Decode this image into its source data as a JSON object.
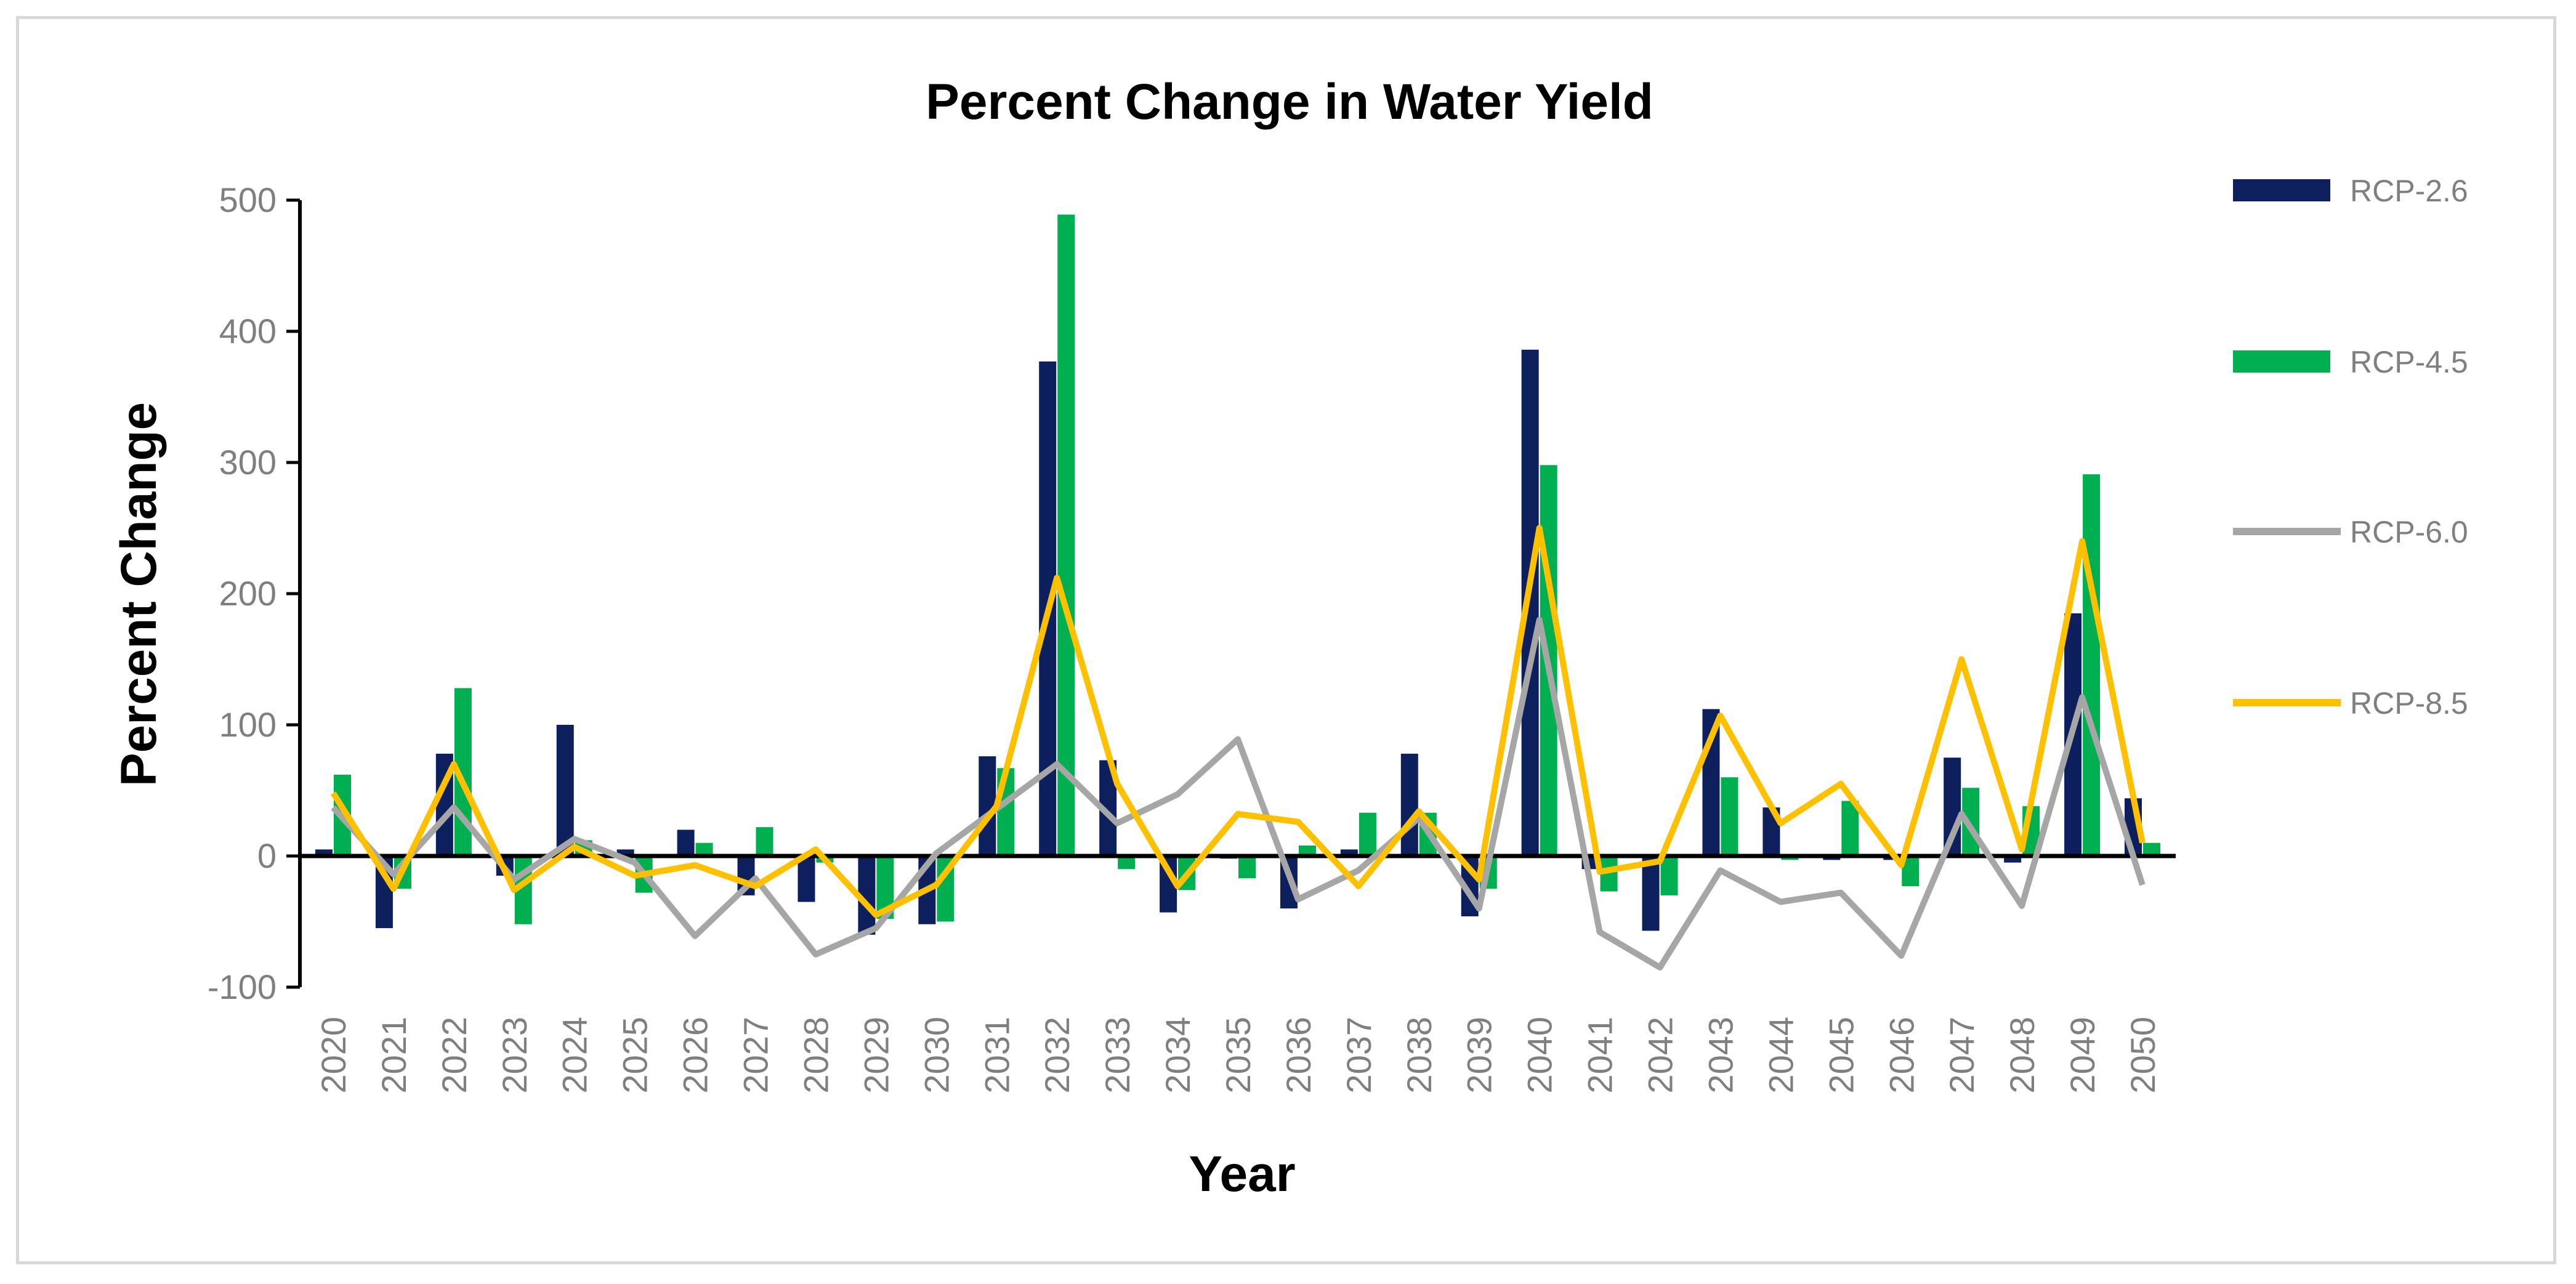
{
  "chart_data": {
    "type": "bar",
    "title": "Percent Change in Water Yield",
    "xlabel": "Year",
    "ylabel": "Percent Change",
    "ylim": [
      -100,
      500
    ],
    "yticks": [
      -100,
      0,
      100,
      200,
      300,
      400,
      500
    ],
    "grid": false,
    "legend_position": "right",
    "categories": [
      "2020",
      "2021",
      "2022",
      "2023",
      "2024",
      "2025",
      "2026",
      "2027",
      "2028",
      "2029",
      "2030",
      "2031",
      "2032",
      "2033",
      "2034",
      "2035",
      "2036",
      "2037",
      "2038",
      "2039",
      "2040",
      "2041",
      "2042",
      "2043",
      "2044",
      "2045",
      "2046",
      "2047",
      "2048",
      "2049",
      "2050"
    ],
    "series": [
      {
        "name": "RCP-2.6",
        "kind": "bar",
        "color": "#0d1f5c",
        "values": [
          5,
          -55,
          78,
          -15,
          100,
          5,
          20,
          -30,
          -35,
          -60,
          -52,
          76,
          377,
          73,
          -43,
          -2,
          -40,
          5,
          78,
          -46,
          386,
          -10,
          -57,
          112,
          37,
          -3,
          -3,
          75,
          -5,
          185,
          44
        ]
      },
      {
        "name": "RCP-4.5",
        "kind": "bar",
        "color": "#00b050",
        "values": [
          62,
          -25,
          128,
          -52,
          12,
          -28,
          10,
          22,
          -5,
          -48,
          -50,
          67,
          489,
          -10,
          -26,
          -17,
          8,
          33,
          33,
          -25,
          298,
          -27,
          -30,
          60,
          -3,
          42,
          -23,
          52,
          38,
          291,
          10
        ]
      },
      {
        "name": "RCP-6.0",
        "kind": "line",
        "color": "#a6a6a6",
        "values": [
          37,
          -14,
          37,
          -18,
          13,
          -5,
          -61,
          -17,
          -75,
          -55,
          2,
          36,
          70,
          25,
          47,
          89,
          -33,
          -11,
          29,
          -40,
          180,
          -58,
          -85,
          -11,
          -35,
          -28,
          -76,
          32,
          -38,
          121,
          -22
        ]
      },
      {
        "name": "RCP-8.5",
        "kind": "line",
        "color": "#ffc000",
        "values": [
          48,
          -25,
          70,
          -26,
          7,
          -15,
          -7,
          -23,
          5,
          -45,
          -22,
          38,
          212,
          55,
          -23,
          32,
          26,
          -23,
          34,
          -18,
          250,
          -12,
          -4,
          107,
          25,
          55,
          -7,
          150,
          5,
          240,
          10
        ]
      }
    ]
  }
}
